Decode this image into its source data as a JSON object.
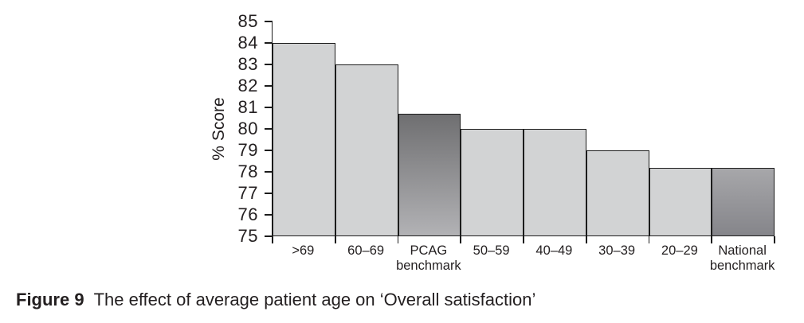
{
  "figure": {
    "caption_label": "Figure 9",
    "caption_text": "The effect of average patient age on ‘Overall satisfaction’"
  },
  "chart_data": {
    "type": "bar",
    "title": "",
    "xlabel": "",
    "ylabel": "% Score",
    "ylim": [
      75,
      85
    ],
    "yticks": [
      85,
      84,
      83,
      82,
      81,
      80,
      79,
      78,
      77,
      76,
      75
    ],
    "grid": false,
    "legend": null,
    "categories": [
      ">69",
      "60–69",
      "PCAG benchmark",
      "50–59",
      "40–49",
      "30–39",
      "20–29",
      "National benchmark"
    ],
    "x_label_lines": [
      [
        ">69"
      ],
      [
        "60–69"
      ],
      [
        "PCAG",
        "benchmark"
      ],
      [
        "50–59"
      ],
      [
        "40–49"
      ],
      [
        "30–39"
      ],
      [
        "20–29"
      ],
      [
        "National",
        "benchmark"
      ]
    ],
    "values": [
      84,
      83,
      80.7,
      80,
      80,
      79,
      78.2,
      78.2
    ],
    "bar_fills": [
      {
        "type": "solid",
        "color": "#d2d3d4"
      },
      {
        "type": "solid",
        "color": "#d2d3d4"
      },
      {
        "type": "gradient",
        "from": "#6f6f71",
        "to": "#b2b2b5"
      },
      {
        "type": "solid",
        "color": "#d2d3d4"
      },
      {
        "type": "solid",
        "color": "#d2d3d4"
      },
      {
        "type": "solid",
        "color": "#d2d3d4"
      },
      {
        "type": "solid",
        "color": "#d2d3d4"
      },
      {
        "type": "gradient",
        "from": "#a7a7aa",
        "to": "#85858a"
      }
    ],
    "colors": {
      "bar_light": "#d2d3d4",
      "pcag_gradient_top": "#6f6f71",
      "pcag_gradient_bottom": "#b2b2b5",
      "national_gradient_top": "#a7a7aa",
      "national_gradient_bottom": "#85858a",
      "axis_and_border": "#1c1c1c",
      "text": "#231f20"
    }
  }
}
